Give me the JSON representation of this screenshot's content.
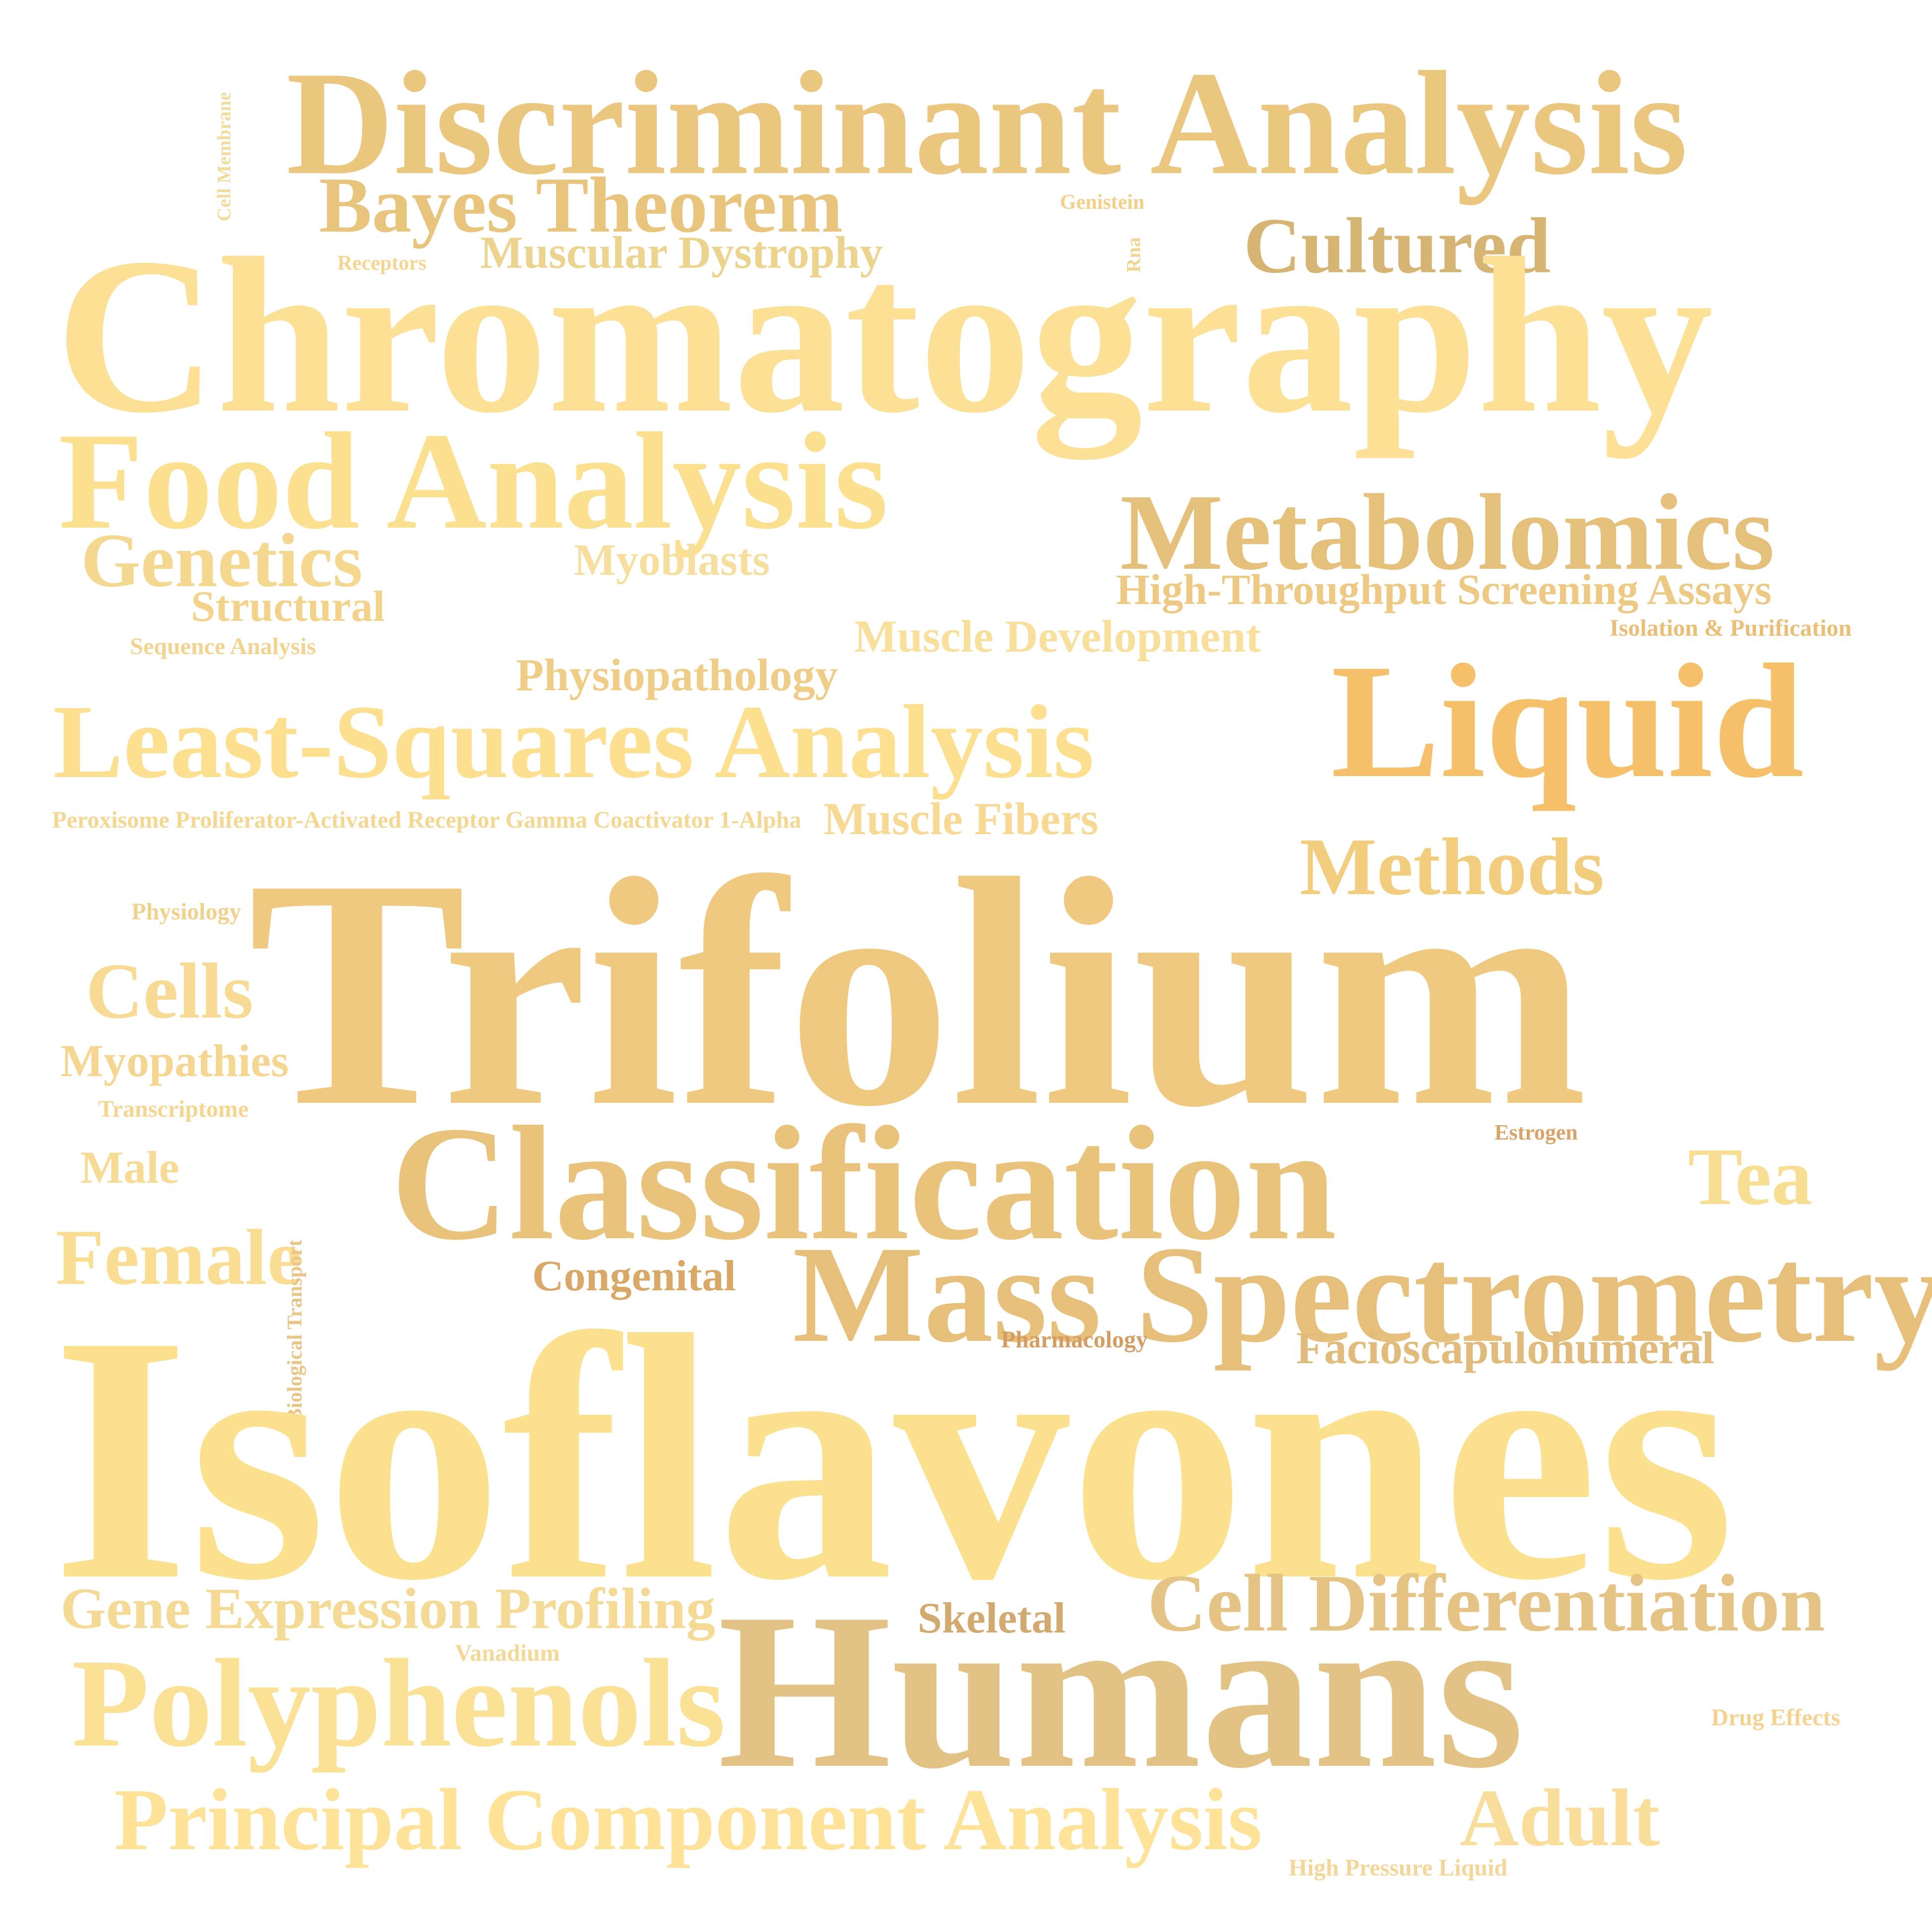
{
  "words": [
    {
      "text": "Discriminant Analysis",
      "color": "#ebc67e"
    },
    {
      "text": "Bayes Theorem",
      "color": "#e8c47c"
    },
    {
      "text": "Muscular Dystrophy",
      "color": "#ecd38e"
    },
    {
      "text": "Receptors",
      "color": "#f6d590"
    },
    {
      "text": "Cell Membrane",
      "color": "#f1dc9d"
    },
    {
      "text": "Genistein",
      "color": "#f4cf88"
    },
    {
      "text": "Rna",
      "color": "#f0d690"
    },
    {
      "text": "Cultured",
      "color": "#d6b473"
    },
    {
      "text": "Chromatography",
      "color": "#fbe095"
    },
    {
      "text": "Food Analysis",
      "color": "#fbe08f"
    },
    {
      "text": "Metabolomics",
      "color": "#e5c07b"
    },
    {
      "text": "Genetics",
      "color": "#f5d88f"
    },
    {
      "text": "Myoblasts",
      "color": "#f6df9e"
    },
    {
      "text": "High-Throughput Screening Assays",
      "color": "#edc984"
    },
    {
      "text": "Structural",
      "color": "#f3d38a"
    },
    {
      "text": "Muscle Development",
      "color": "#f8df9c"
    },
    {
      "text": "Isolation & Purification",
      "color": "#ebbe76"
    },
    {
      "text": "Sequence Analysis",
      "color": "#f3d390"
    },
    {
      "text": "Physiopathology",
      "color": "#efcd86"
    },
    {
      "text": "Liquid",
      "color": "#f6c06a"
    },
    {
      "text": "Least-Squares Analysis",
      "color": "#fde08f"
    },
    {
      "text": "Peroxisome Proliferator-Activated Receptor Gamma Coactivator 1-Alpha",
      "color": "#f4d791"
    },
    {
      "text": "Muscle Fibers",
      "color": "#f8d993"
    },
    {
      "text": "Methods",
      "color": "#f2cd7e"
    },
    {
      "text": "Physiology",
      "color": "#f0d28c"
    },
    {
      "text": "Trifolium",
      "color": "#efc97f"
    },
    {
      "text": "Cells",
      "color": "#f7da94"
    },
    {
      "text": "Myopathies",
      "color": "#f5d690"
    },
    {
      "text": "Transcriptome",
      "color": "#f5d690"
    },
    {
      "text": "Estrogen",
      "color": "#d9a467"
    },
    {
      "text": "Classification",
      "color": "#e9c37b"
    },
    {
      "text": "Tea",
      "color": "#f8de93"
    },
    {
      "text": "Male",
      "color": "#f7db95"
    },
    {
      "text": "Female",
      "color": "#f9dd92"
    },
    {
      "text": "Biological Transport",
      "color": "#e9c588"
    },
    {
      "text": "Congenital",
      "color": "#d9a866"
    },
    {
      "text": "Mass Spectrometry",
      "color": "#e6bf7a"
    },
    {
      "text": "Pharmacology",
      "color": "#d49e63"
    },
    {
      "text": "Facioscapulohumeral",
      "color": "#e0bb7b"
    },
    {
      "text": "Isoflavones",
      "color": "#fbe08d"
    },
    {
      "text": "Gene Expression Profiling",
      "color": "#f5da95"
    },
    {
      "text": "Skeletal",
      "color": "#d2aa70"
    },
    {
      "text": "Cell Differentiation",
      "color": "#e4c384"
    },
    {
      "text": "Vanadium",
      "color": "#f4d995"
    },
    {
      "text": "Humans",
      "color": "#e2c285"
    },
    {
      "text": "Polyphenols",
      "color": "#fbe195"
    },
    {
      "text": "Drug Effects",
      "color": "#f6d290"
    },
    {
      "text": "Principal Component Analysis",
      "color": "#fde297"
    },
    {
      "text": "Adult",
      "color": "#f8de9a"
    },
    {
      "text": "High Pressure Liquid",
      "color": "#f4d798"
    }
  ]
}
